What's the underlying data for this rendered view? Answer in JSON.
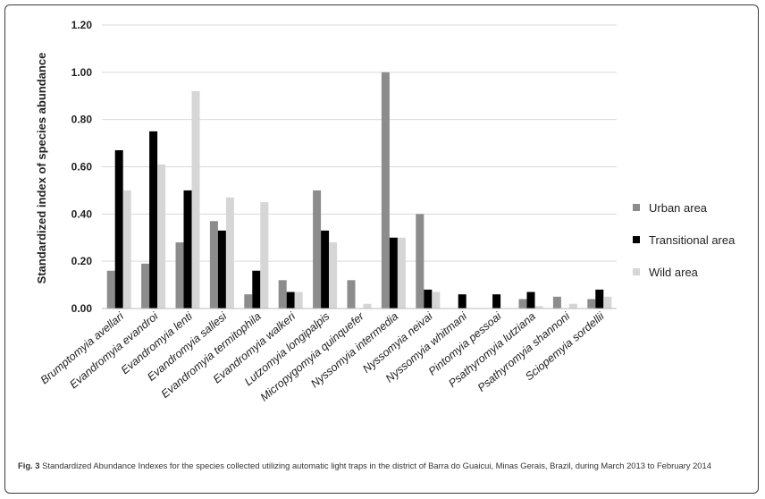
{
  "caption": {
    "label": "Fig. 3",
    "text": "Standardized Abundance Indexes for the species collected utilizing automatic light traps in the district of Barra do Guaicui, Minas Gerais, Brazil, during March 2013 to February 2014"
  },
  "chart_data": {
    "type": "bar",
    "title": "",
    "xlabel": "",
    "ylabel": "Standardized index of species abundance",
    "ylim": [
      0,
      1.2
    ],
    "yticks": [
      "0.00",
      "0.20",
      "0.40",
      "0.60",
      "0.80",
      "1.00",
      "1.20"
    ],
    "grid": true,
    "legend_position": "right",
    "categories": [
      "Brumptomyia avellari",
      "Evandromyia evandroi",
      "Evandromyia lenti",
      "Evandromyia sallesi",
      "Evandromyia termitophila",
      "Evandromyia walkeri",
      "Lutzomyia longipalpis",
      "Micropygomyia quinquefer",
      "Nyssomyia intermedia",
      "Nyssomyia neivai",
      "Nyssomyia whitmani",
      "Pintomyia pessoai",
      "Psathyromyia lutziana",
      "Psathyromyia shannoni",
      "Sciopemyia sordellii"
    ],
    "series": [
      {
        "name": "Urban area",
        "color": "#8c8c8c",
        "values": [
          0.16,
          0.19,
          0.28,
          0.37,
          0.06,
          0.12,
          0.5,
          0.12,
          1.0,
          0.4,
          0.0,
          0.0,
          0.04,
          0.05,
          0.04
        ]
      },
      {
        "name": "Transitional area",
        "color": "#000000",
        "values": [
          0.67,
          0.75,
          0.5,
          0.33,
          0.16,
          0.07,
          0.33,
          0.0,
          0.3,
          0.08,
          0.06,
          0.06,
          0.07,
          0.0,
          0.08
        ]
      },
      {
        "name": "Wild area",
        "color": "#d6d6d6",
        "values": [
          0.5,
          0.61,
          0.92,
          0.47,
          0.45,
          0.07,
          0.28,
          0.02,
          0.3,
          0.07,
          0.0,
          0.0,
          0.01,
          0.02,
          0.05
        ]
      }
    ]
  }
}
